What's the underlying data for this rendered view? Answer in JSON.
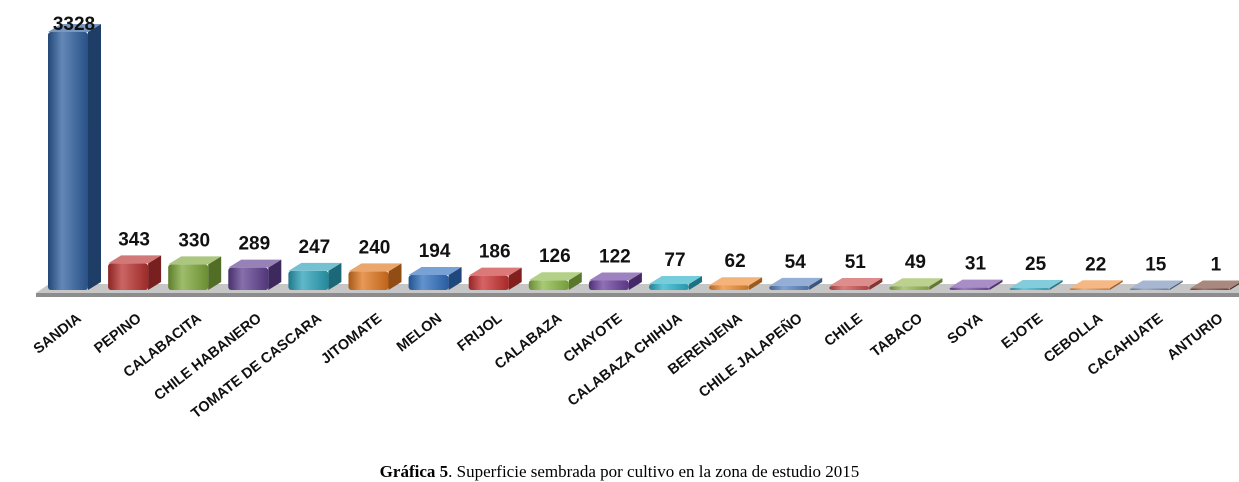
{
  "chart_data": {
    "type": "bar",
    "categories": [
      "SANDIA",
      "PEPINO",
      "CALABACITA",
      "CHILE HABANERO",
      "TOMATE DE CASCARA",
      "JITOMATE",
      "MELON",
      "FRIJOL",
      "CALABAZA",
      "CHAYOTE",
      "CALABAZA CHIHUA",
      "BERENJENA",
      "CHILE JALAPEÑO",
      "CHILE",
      "TABACO",
      "SOYA",
      "EJOTE",
      "CEBOLLA",
      "CACAHUATE",
      "ANTURIO"
    ],
    "values": [
      3328,
      343,
      330,
      289,
      247,
      240,
      194,
      186,
      126,
      122,
      77,
      62,
      54,
      51,
      49,
      31,
      25,
      22,
      15,
      1
    ],
    "colors": [
      "#2f5f9f",
      "#b8312f",
      "#7da73a",
      "#5f3f90",
      "#2aa0b8",
      "#e0761f",
      "#2f6fbf",
      "#c83030",
      "#8ab845",
      "#6a3f9e",
      "#2ab0c8",
      "#ee8a30",
      "#5a82c0",
      "#cc5050",
      "#96b850",
      "#7a50a8",
      "#40b0c8",
      "#f09040",
      "#7890b8",
      "#7a4a3a"
    ],
    "ylim": [
      0,
      3328
    ],
    "grid": false,
    "legend": "none",
    "data_labels": true
  },
  "caption": {
    "prefix": "Gráfica 5",
    "text": ". Superficie sembrada por cultivo en la zona de estudio 2015"
  }
}
